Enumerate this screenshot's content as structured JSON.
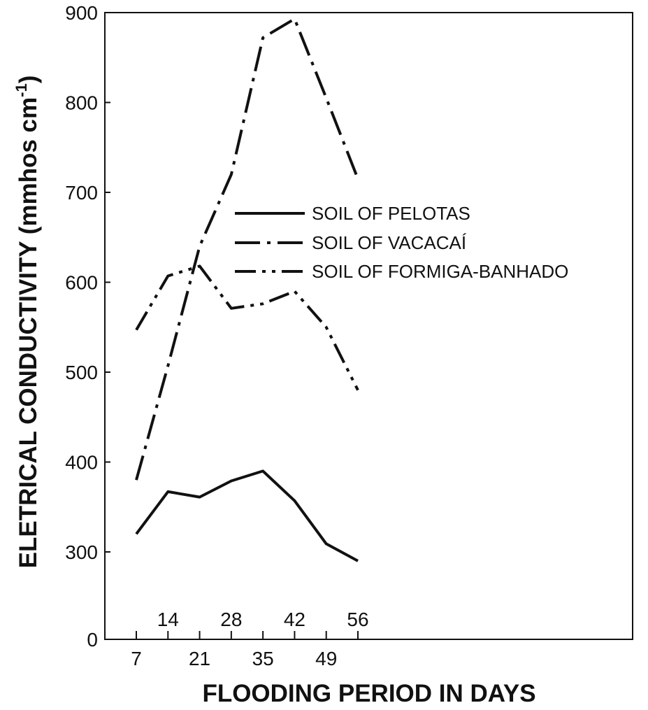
{
  "chart_data": {
    "type": "line",
    "xlabel": "FLOODING PERIOD IN DAYS",
    "ylabel": "ELETRICAL CONDUCTIVITY (mmhos cm",
    "ylabel_sup": "-1",
    "ylabel_close": ")",
    "x_ticks_lower": [
      "7",
      "21",
      "35",
      "49"
    ],
    "x_ticks_upper": [
      "14",
      "28",
      "42",
      "56"
    ],
    "x_tick_values": [
      7,
      14,
      21,
      28,
      35,
      42,
      49,
      56
    ],
    "y_ticks": [
      "0",
      "300",
      "400",
      "500",
      "600",
      "700",
      "800",
      "900"
    ],
    "ylim": [
      0,
      900
    ],
    "grid": false,
    "legend_position": "center",
    "series": [
      {
        "name": "SOIL OF PELOTAS",
        "style": "solid",
        "x": [
          7,
          14,
          21,
          28,
          35,
          42,
          49,
          56
        ],
        "y": [
          320,
          367,
          361,
          379,
          390,
          357,
          309,
          290
        ]
      },
      {
        "name": "SOIL OF VACACAÍ",
        "style": "dash-dot",
        "x": [
          7,
          14,
          21,
          28,
          35,
          42,
          49,
          56
        ],
        "y": [
          380,
          507,
          640,
          720,
          872,
          893,
          805,
          715
        ]
      },
      {
        "name": "SOIL OF FORMIGA-BANHADO",
        "style": "dash-dot-dot",
        "x": [
          7,
          14,
          21,
          28,
          35,
          42,
          49,
          56
        ],
        "y": [
          547,
          607,
          618,
          571,
          576,
          590,
          550,
          480
        ]
      }
    ]
  }
}
